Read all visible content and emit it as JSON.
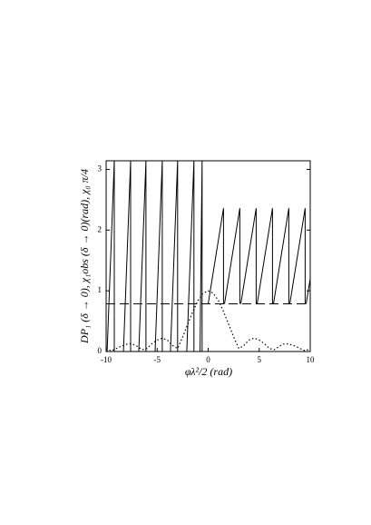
{
  "chart_data": {
    "type": "line",
    "xlabel": "φλ²/2 (rad)",
    "ylabel": "DP₁ (δ → 0),  χ₁obs (δ → 0)(rad),  χ₀     π/4",
    "xlim": [
      -10,
      10
    ],
    "ylim": [
      0,
      3.1416
    ],
    "xticks": [
      -10,
      -5,
      0,
      5,
      10
    ],
    "yticks": [
      0,
      1,
      2,
      3
    ],
    "series": [
      {
        "name": "χ1obs",
        "color": "#000000",
        "style": "solid",
        "x": [
          -9.9,
          -9.2,
          -9.2,
          null,
          -8.3,
          -7.6,
          -7.6,
          null,
          -6.8,
          -6.1,
          -6.1,
          null,
          -5.2,
          -4.5,
          -4.5,
          null,
          -3.7,
          -3.0,
          -3.0,
          null,
          -2.1,
          -1.4,
          -1.4,
          null,
          -0.8,
          -0.6,
          -0.6,
          null,
          0,
          1.5,
          1.5,
          null,
          1.6,
          3.1,
          3.1,
          null,
          3.2,
          4.7,
          4.7,
          null,
          4.8,
          6.3,
          6.3,
          null,
          6.4,
          7.9,
          7.9,
          null,
          8.0,
          9.5,
          9.5,
          null,
          9.6,
          10
        ],
        "values": [
          0,
          3.1416,
          0,
          null,
          0,
          3.1416,
          0,
          null,
          0,
          3.1416,
          0,
          null,
          0,
          3.1416,
          0,
          null,
          0,
          3.1416,
          0,
          null,
          0,
          3.1416,
          0,
          null,
          0,
          3.1416,
          0,
          null,
          0.785,
          2.36,
          0.785,
          null,
          0.785,
          2.36,
          0.785,
          null,
          0.785,
          2.36,
          0.785,
          null,
          0.785,
          2.36,
          0.785,
          null,
          0.785,
          2.36,
          0.785,
          null,
          0.785,
          2.36,
          0.785,
          null,
          0.785,
          1.2
        ]
      },
      {
        "name": "χ0",
        "color": "#000000",
        "style": "dashed",
        "x": [
          -10,
          10
        ],
        "values": [
          0.785,
          0.785
        ]
      },
      {
        "name": "DP1",
        "color": "#000000",
        "style": "dotted",
        "x": [
          -10,
          -9.5,
          -9,
          -8.5,
          -8,
          -7.5,
          -7,
          -6.5,
          -6,
          -5.5,
          -5,
          -4.5,
          -4,
          -3.5,
          -3,
          -2.5,
          -2,
          -1.5,
          -1,
          -0.5,
          0,
          0.5,
          1,
          1.5,
          2,
          2.5,
          3,
          3.5,
          4,
          4.5,
          5,
          5.5,
          6,
          6.5,
          7,
          7.5,
          8,
          8.5,
          9,
          9.5,
          10
        ],
        "values": [
          0.05,
          0.01,
          0.05,
          0.09,
          0.12,
          0.13,
          0.09,
          0.03,
          0.05,
          0.13,
          0.19,
          0.22,
          0.19,
          0.1,
          0.05,
          0.24,
          0.45,
          0.66,
          0.84,
          0.96,
          1,
          0.96,
          0.84,
          0.66,
          0.45,
          0.24,
          0.05,
          0.1,
          0.19,
          0.22,
          0.19,
          0.13,
          0.05,
          0.03,
          0.09,
          0.13,
          0.12,
          0.09,
          0.05,
          0.01,
          0.05
        ]
      }
    ]
  }
}
